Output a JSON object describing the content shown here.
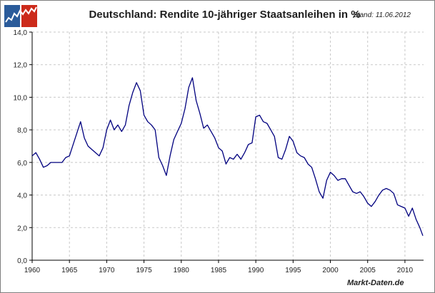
{
  "header": {
    "title": "Deutschland: Rendite 10-jähriger Staatsanleihen in %",
    "stand": "Stand: 11.06.2012",
    "source": "Markt-Daten.de",
    "logo_icon": "market-chart-logo-icon"
  },
  "colors": {
    "line": "#00007f",
    "grid": "#c8c8c8",
    "axis": "#000000",
    "logo_red": "#cc2a1a",
    "logo_blue": "#2a5b9a"
  },
  "chart_data": {
    "type": "line",
    "title": "Deutschland: Rendite 10-jähriger Staatsanleihen in %",
    "xlabel": "",
    "ylabel": "",
    "xlim": [
      1960,
      2012.5
    ],
    "ylim": [
      0,
      14
    ],
    "grid": true,
    "legend": "none",
    "x_ticks": [
      "1960",
      "1965",
      "1970",
      "1975",
      "1980",
      "1985",
      "1990",
      "1995",
      "2000",
      "2005",
      "2010"
    ],
    "y_ticks": [
      "0,0",
      "2,0",
      "4,0",
      "6,0",
      "8,0",
      "10,0",
      "12,0",
      "14,0"
    ],
    "series": [
      {
        "x": [
          1960,
          1960.5,
          1961,
          1961.5,
          1962,
          1962.5,
          1963,
          1963.5,
          1964,
          1964.5,
          1965,
          1965.5,
          1966,
          1966.5,
          1967,
          1967.5,
          1968,
          1968.5,
          1969,
          1969.5,
          1970,
          1970.5,
          1971,
          1971.5,
          1972,
          1972.5,
          1973,
          1973.5,
          1974,
          1974.5,
          1975,
          1975.5,
          1976,
          1976.5,
          1977,
          1977.5,
          1978,
          1978.5,
          1979,
          1979.5,
          1980,
          1980.5,
          1981,
          1981.5,
          1982,
          1982.5,
          1983,
          1983.5,
          1984,
          1984.5,
          1985,
          1985.5,
          1986,
          1986.5,
          1987,
          1987.5,
          1988,
          1988.5,
          1989,
          1989.5,
          1990,
          1990.5,
          1991,
          1991.5,
          1992,
          1992.5,
          1993,
          1993.5,
          1994,
          1994.5,
          1995,
          1995.5,
          1996,
          1996.5,
          1997,
          1997.5,
          1998,
          1998.5,
          1999,
          1999.5,
          2000,
          2000.5,
          2001,
          2001.5,
          2002,
          2002.5,
          2003,
          2003.5,
          2004,
          2004.5,
          2005,
          2005.5,
          2006,
          2006.5,
          2007,
          2007.5,
          2008,
          2008.5,
          2009,
          2009.5,
          2010,
          2010.5,
          2011,
          2011.5,
          2012,
          2012.4
        ],
        "y": [
          6.4,
          6.6,
          6.2,
          5.7,
          5.8,
          6.0,
          6.0,
          6.0,
          6.0,
          6.3,
          6.4,
          7.1,
          7.8,
          8.5,
          7.5,
          7.0,
          6.8,
          6.6,
          6.4,
          6.9,
          8.0,
          8.6,
          8.0,
          8.3,
          7.9,
          8.3,
          9.5,
          10.3,
          10.9,
          10.4,
          8.9,
          8.5,
          8.3,
          8.0,
          6.3,
          5.8,
          5.2,
          6.4,
          7.4,
          7.9,
          8.4,
          9.3,
          10.6,
          11.2,
          9.8,
          9.0,
          8.1,
          8.3,
          7.9,
          7.5,
          6.9,
          6.7,
          5.9,
          6.3,
          6.2,
          6.5,
          6.2,
          6.6,
          7.1,
          7.2,
          8.8,
          8.9,
          8.5,
          8.4,
          8.0,
          7.6,
          6.3,
          6.2,
          6.8,
          7.6,
          7.3,
          6.6,
          6.4,
          6.3,
          5.9,
          5.7,
          5.0,
          4.2,
          3.8,
          4.9,
          5.4,
          5.2,
          4.9,
          5.0,
          5.0,
          4.6,
          4.2,
          4.1,
          4.2,
          3.9,
          3.5,
          3.3,
          3.6,
          4.0,
          4.3,
          4.4,
          4.3,
          4.1,
          3.4,
          3.3,
          3.2,
          2.7,
          3.2,
          2.5,
          2.0,
          1.5
        ]
      }
    ]
  }
}
